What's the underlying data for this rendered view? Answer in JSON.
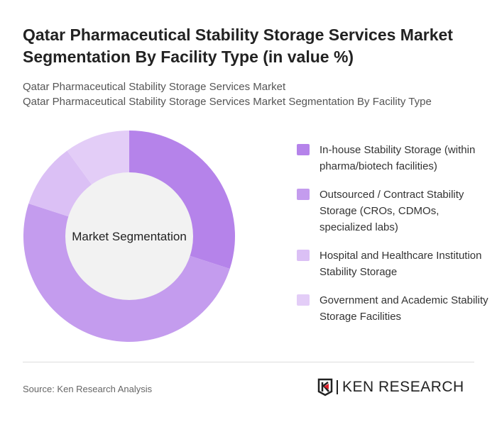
{
  "title": "Qatar Pharmaceutical Stability Storage Services Market Segmentation By Facility Type (in value %)",
  "subtitle1": "Qatar Pharmaceutical Stability Storage Services Market",
  "subtitle2": "Qatar Pharmaceutical Stability Storage Services Market Segmentation By Facility Type",
  "source": "Source: Ken Research Analysis",
  "logo": {
    "text": "KEN RESEARCH",
    "icon": "ken-research-logo-icon"
  },
  "chart_data": {
    "type": "pie",
    "donut": true,
    "center_label": "Market Segmentation",
    "legend_placement": "right",
    "categories": [
      "In-house Stability Storage (within pharma/biotech facilities)",
      "Outsourced / Contract Stability Storage (CROs, CDMOs, specialized labs)",
      "Hospital and Healthcare Institution Stability Storage",
      "Government and Academic Stability Storage Facilities"
    ],
    "values": [
      30,
      50,
      10,
      10
    ],
    "colors": [
      "#b583ea",
      "#c49cee",
      "#dbc0f5",
      "#e3cdf7"
    ]
  }
}
